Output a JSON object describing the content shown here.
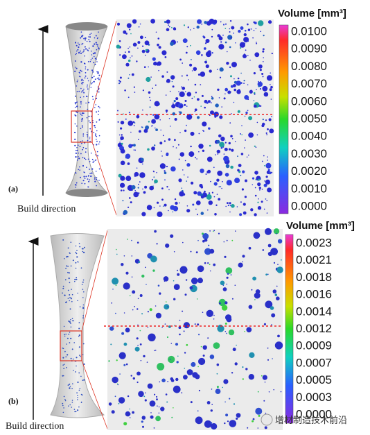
{
  "panels": [
    {
      "label": "(a)",
      "caption": "Build direction",
      "colorbar": {
        "title": "Volume [mm³]",
        "labels": [
          "0.0100",
          "0.0090",
          "0.0080",
          "0.0070",
          "0.0060",
          "0.0050",
          "0.0040",
          "0.0030",
          "0.0020",
          "0.0010",
          "0.0000"
        ]
      }
    },
    {
      "label": "(b)",
      "caption": "Build direction",
      "colorbar": {
        "title": "Volume [mm³]",
        "labels": [
          "0.0023",
          "0.0021",
          "0.0018",
          "0.0016",
          "0.0014",
          "0.0012",
          "0.0009",
          "0.0007",
          "0.0005",
          "0.0003",
          "0.0000"
        ]
      }
    }
  ],
  "watermark": "增材制造技术前沿"
}
